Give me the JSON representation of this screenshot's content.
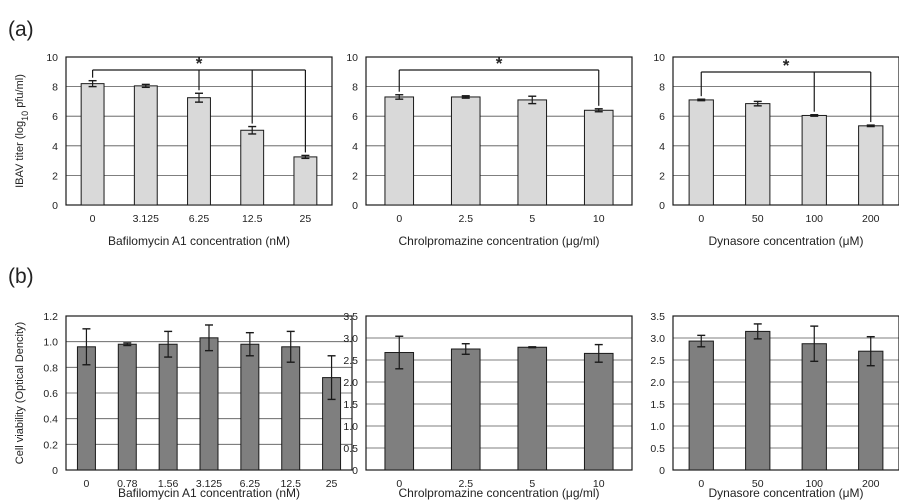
{
  "panels": [
    {
      "label": "(a)"
    },
    {
      "label": "(b)"
    }
  ],
  "colors": {
    "bar_a": "#d9d9d9",
    "bar_b": "#7f7f7f",
    "stroke": "#1a1a1a",
    "grid": "#555555"
  },
  "chart_data": [
    {
      "type": "bar",
      "panel": "(a)",
      "categories": [
        "0",
        "3.125",
        "6.25",
        "12.5",
        "25"
      ],
      "values": [
        8.2,
        8.05,
        7.25,
        5.05,
        3.25
      ],
      "errors": [
        0.2,
        0.1,
        0.3,
        0.25,
        0.1
      ],
      "xlabel": "Bafilomycin A1 concentration (nM)",
      "ylabel_parts": [
        "IBAV titer (log",
        "10",
        " pfu/ml)"
      ],
      "ylim": [
        0,
        10
      ],
      "yticks": [
        "0",
        "2",
        "4",
        "6",
        "8",
        "10"
      ],
      "grid": true,
      "significance": {
        "symbol": "*",
        "ref": 0,
        "compare": [
          2,
          3,
          4
        ]
      }
    },
    {
      "type": "bar",
      "panel": "(a)",
      "categories": [
        "0",
        "2.5",
        "5",
        "10"
      ],
      "values": [
        7.3,
        7.3,
        7.1,
        6.4
      ],
      "errors": [
        0.15,
        0.08,
        0.25,
        0.1
      ],
      "xlabel_parts": [
        "Chrolpromazine concentration (",
        "μ",
        "g/ml)"
      ],
      "ylim": [
        0,
        10
      ],
      "yticks": [
        "0",
        "2",
        "4",
        "6",
        "8",
        "10"
      ],
      "grid": true,
      "significance": {
        "symbol": "*",
        "ref": 0,
        "compare": [
          3
        ]
      }
    },
    {
      "type": "bar",
      "panel": "(a)",
      "categories": [
        "0",
        "50",
        "100",
        "200"
      ],
      "values": [
        7.1,
        6.85,
        6.05,
        5.35
      ],
      "errors": [
        0.05,
        0.15,
        0.05,
        0.05
      ],
      "xlabel_parts": [
        "Dynasore concentration (",
        "μ",
        "M)"
      ],
      "ylim": [
        0,
        10
      ],
      "yticks": [
        "0",
        "2",
        "4",
        "6",
        "8",
        "10"
      ],
      "grid": true,
      "significance": {
        "symbol": "*",
        "ref": 0,
        "compare": [
          2,
          3
        ]
      }
    },
    {
      "type": "bar",
      "panel": "(b)",
      "categories": [
        "0",
        "0.78",
        "1.56",
        "3.125",
        "6.25",
        "12.5",
        "25"
      ],
      "values": [
        0.96,
        0.98,
        0.98,
        1.03,
        0.98,
        0.96,
        0.72
      ],
      "errors": [
        0.14,
        0.01,
        0.1,
        0.1,
        0.09,
        0.12,
        0.17
      ],
      "xlabel": "Bafilomycin A1 concentration (nM)",
      "ylabel": "Cell viability (Optical Dencity)",
      "ylim": [
        0,
        1.2
      ],
      "yticks": [
        "0",
        "0.2",
        "0.4",
        "0.6",
        "0.8",
        "1.0",
        "1.2"
      ],
      "grid": true
    },
    {
      "type": "bar",
      "panel": "(b)",
      "categories": [
        "0",
        "2.5",
        "5",
        "10"
      ],
      "values": [
        2.67,
        2.75,
        2.79,
        2.65
      ],
      "errors": [
        0.37,
        0.12,
        0.01,
        0.2
      ],
      "xlabel_parts": [
        "Chrolpromazine concentration (",
        "μ",
        "g/ml)"
      ],
      "ylim": [
        0,
        3.5
      ],
      "yticks": [
        "0",
        "0.5",
        "1.0",
        "1.5",
        "2.0",
        "2.5",
        "3.0",
        "3.5"
      ],
      "grid": true
    },
    {
      "type": "bar",
      "panel": "(b)",
      "categories": [
        "0",
        "50",
        "100",
        "200"
      ],
      "values": [
        2.93,
        3.15,
        2.87,
        2.7
      ],
      "errors": [
        0.13,
        0.17,
        0.4,
        0.33
      ],
      "xlabel_parts": [
        "Dynasore concentration (",
        "μ",
        "M)"
      ],
      "ylim": [
        0,
        3.5
      ],
      "yticks": [
        "0",
        "0.5",
        "1.0",
        "1.5",
        "2.0",
        "2.5",
        "3.0",
        "3.5"
      ],
      "grid": true
    }
  ]
}
